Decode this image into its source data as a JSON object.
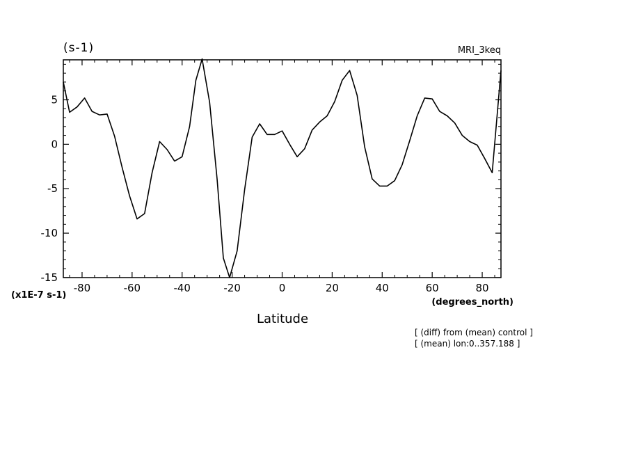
{
  "chart_data": {
    "type": "line",
    "unit_label": "(s-1)",
    "model_label": "MRI_3keq",
    "xlabel": "Latitude",
    "x_units": "(degrees_north)",
    "y_scale_label": "(x1E-7 s-1)",
    "xlim": [
      -87.5,
      87.5
    ],
    "ylim": [
      -15,
      9.5
    ],
    "x_ticks": [
      {
        "value": -80,
        "label": "-80"
      },
      {
        "value": -60,
        "label": "-60"
      },
      {
        "value": -40,
        "label": "-40"
      },
      {
        "value": -20,
        "label": "-20"
      },
      {
        "value": 0,
        "label": "0"
      },
      {
        "value": 20,
        "label": "20"
      },
      {
        "value": 40,
        "label": "40"
      },
      {
        "value": 60,
        "label": "60"
      },
      {
        "value": 80,
        "label": "80"
      }
    ],
    "y_ticks": [
      {
        "value": 5,
        "label": "5"
      },
      {
        "value": 0,
        "label": "0"
      },
      {
        "value": -5,
        "label": "-5"
      },
      {
        "value": -10,
        "label": "-10"
      },
      {
        "value": -15,
        "label": "-15"
      }
    ],
    "annotations": [
      "[ (diff) from (mean) control ]",
      "[ (mean) lon:0..357.188 ]"
    ],
    "grid": false,
    "series": [
      {
        "x": [
          -87.5,
          -85,
          -82,
          -79,
          -76,
          -73,
          -70,
          -67,
          -64,
          -61,
          -58,
          -55,
          -52,
          -49,
          -46,
          -43,
          -40,
          -37,
          -34.5,
          -32,
          -29,
          -26,
          -23.5,
          -21,
          -18,
          -15,
          -12,
          -9,
          -6,
          -3,
          0,
          3,
          6,
          9,
          12,
          15,
          18,
          21,
          24,
          27,
          30,
          33,
          36,
          39,
          42,
          45,
          48,
          51,
          54,
          57,
          60,
          63,
          66,
          69,
          72,
          75,
          78,
          81,
          84,
          87.5
        ],
        "y": [
          7.0,
          3.6,
          4.2,
          5.2,
          3.7,
          3.3,
          3.4,
          0.9,
          -2.6,
          -5.8,
          -8.4,
          -7.8,
          -3.2,
          0.3,
          -0.6,
          -1.9,
          -1.4,
          2.0,
          7.2,
          9.6,
          4.7,
          -3.9,
          -12.8,
          -15.0,
          -12.0,
          -5.1,
          0.8,
          2.3,
          1.1,
          1.1,
          1.5,
          0.0,
          -1.4,
          -0.5,
          1.6,
          2.5,
          3.2,
          4.8,
          7.2,
          8.3,
          5.5,
          -0.3,
          -3.9,
          -4.7,
          -4.7,
          -4.1,
          -2.3,
          0.4,
          3.2,
          5.2,
          5.1,
          3.7,
          3.2,
          2.4,
          1.0,
          0.3,
          -0.1,
          -1.6,
          -3.2,
          8.3
        ]
      }
    ]
  }
}
